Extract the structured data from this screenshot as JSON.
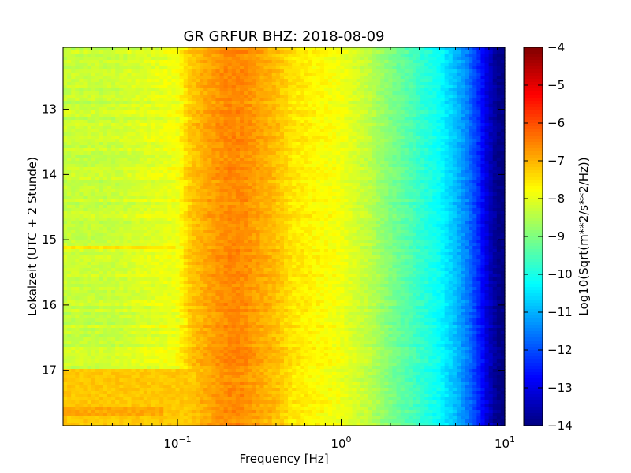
{
  "chart_data": {
    "type": "heatmap",
    "title": "GR GRFUR BHZ: 2018-08-09",
    "xlabel": "Frequency [Hz]",
    "ylabel": "Lokalzeit (UTC + 2 Stunde)",
    "x_scale": "log",
    "xlim": [
      0.02,
      10
    ],
    "x_ticks": [
      {
        "value": 0.1,
        "base": "10",
        "exp": "−1"
      },
      {
        "value": 1,
        "base": "10",
        "exp": "0"
      },
      {
        "value": 10,
        "base": "10",
        "exp": "1"
      }
    ],
    "ylim": [
      12.05,
      17.85
    ],
    "y_ticks": [
      {
        "value": 13,
        "label": "13"
      },
      {
        "value": 14,
        "label": "14"
      },
      {
        "value": 15,
        "label": "15"
      },
      {
        "value": 16,
        "label": "16"
      },
      {
        "value": 17,
        "label": "17"
      }
    ],
    "y_inverted": true,
    "colorbar": {
      "label": "Log10(Sqrt(m**2/s**2/Hz))",
      "range": [
        -14,
        -4
      ],
      "colormap": "jet",
      "ticks": [
        {
          "value": -4,
          "label": "−4"
        },
        {
          "value": -5,
          "label": "−5"
        },
        {
          "value": -6,
          "label": "−6"
        },
        {
          "value": -7,
          "label": "−7"
        },
        {
          "value": -8,
          "label": "−8"
        },
        {
          "value": -9,
          "label": "−9"
        },
        {
          "value": -10,
          "label": "−10"
        },
        {
          "value": -11,
          "label": "−11"
        },
        {
          "value": -12,
          "label": "−12"
        },
        {
          "value": -13,
          "label": "−13"
        },
        {
          "value": -14,
          "label": "−14"
        }
      ]
    },
    "spectrum_profile": {
      "frequency_hz": [
        0.02,
        0.04,
        0.06,
        0.08,
        0.1,
        0.12,
        0.15,
        0.2,
        0.25,
        0.3,
        0.4,
        0.5,
        0.7,
        1.0,
        1.5,
        2.0,
        3.0,
        4.0,
        5.0,
        6.0,
        7.0,
        8.0,
        9.0,
        10.0
      ],
      "value": [
        -8.3,
        -8.3,
        -8.1,
        -8.0,
        -7.9,
        -7.2,
        -6.9,
        -6.6,
        -6.6,
        -6.8,
        -7.1,
        -7.5,
        -7.7,
        -7.9,
        -8.4,
        -9.0,
        -9.7,
        -10.2,
        -10.9,
        -11.6,
        -12.4,
        -13.3,
        -13.9,
        -14.0
      ]
    },
    "time_features": [
      {
        "from": 17.0,
        "to": 17.85,
        "fmax": 0.12,
        "value": -7.2
      },
      {
        "from": 17.55,
        "to": 17.7,
        "fmax": 0.08,
        "value": -6.9
      },
      {
        "from": 15.08,
        "to": 15.14,
        "fmax": 0.1,
        "value": -7.5
      }
    ]
  }
}
